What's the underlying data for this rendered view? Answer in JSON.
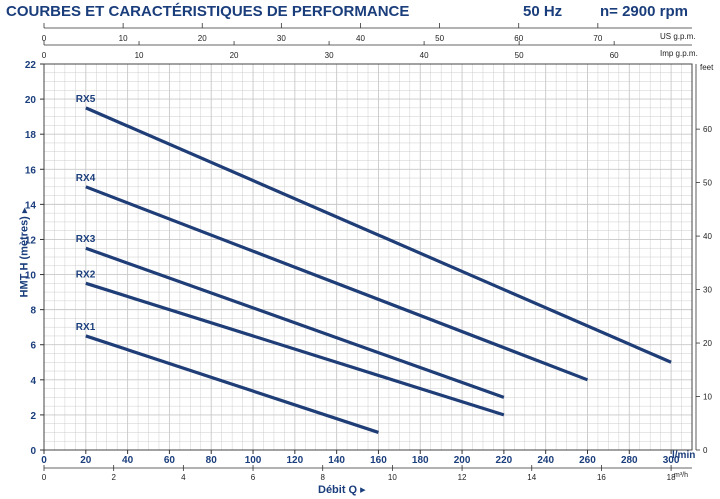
{
  "header": {
    "title": "COURBES ET CARACTÉRISTIQUES DE PERFORMANCE",
    "frequency": "50 Hz",
    "speed": "n= 2900 rpm"
  },
  "colors": {
    "curve": "#1f3d77",
    "text": "#1a3d7c",
    "grid": "#c8c8c8"
  },
  "chart_data": {
    "type": "line",
    "xlabel": "Débit Q",
    "ylabel": "HMT H (mètres)",
    "xlim": [
      0,
      310
    ],
    "ylim": [
      0,
      22
    ],
    "grid": true,
    "x_unit": "l/min",
    "x_ticks": [
      0,
      20,
      40,
      60,
      80,
      100,
      120,
      140,
      160,
      180,
      200,
      220,
      240,
      260,
      280,
      300
    ],
    "y_ticks": [
      0,
      2,
      4,
      6,
      8,
      10,
      12,
      14,
      16,
      18,
      20,
      22
    ],
    "secondary_axes": {
      "top_us_gpm": {
        "label": "US g.p.m.",
        "ticks": [
          0,
          10,
          20,
          30,
          40,
          50,
          60,
          70
        ]
      },
      "top_imp_gpm": {
        "label": "Imp g.p.m.",
        "ticks": [
          0,
          10,
          20,
          30,
          40,
          50,
          60
        ]
      },
      "right_feet": {
        "label": "feet",
        "ticks": [
          0,
          10,
          20,
          30,
          40,
          50,
          60
        ]
      },
      "bottom_m3h": {
        "label": "m³/h",
        "ticks": [
          0,
          2,
          4,
          6,
          8,
          10,
          12,
          14,
          16,
          18
        ]
      }
    },
    "series": [
      {
        "name": "RX1",
        "x": [
          20,
          160
        ],
        "y": [
          6.5,
          1.0
        ]
      },
      {
        "name": "RX2",
        "x": [
          20,
          220
        ],
        "y": [
          9.5,
          2.0
        ]
      },
      {
        "name": "RX3",
        "x": [
          20,
          220
        ],
        "y": [
          11.5,
          3.0
        ]
      },
      {
        "name": "RX4",
        "x": [
          20,
          260
        ],
        "y": [
          15.0,
          4.0
        ]
      },
      {
        "name": "RX5",
        "x": [
          20,
          300
        ],
        "y": [
          19.5,
          5.0
        ]
      }
    ]
  }
}
